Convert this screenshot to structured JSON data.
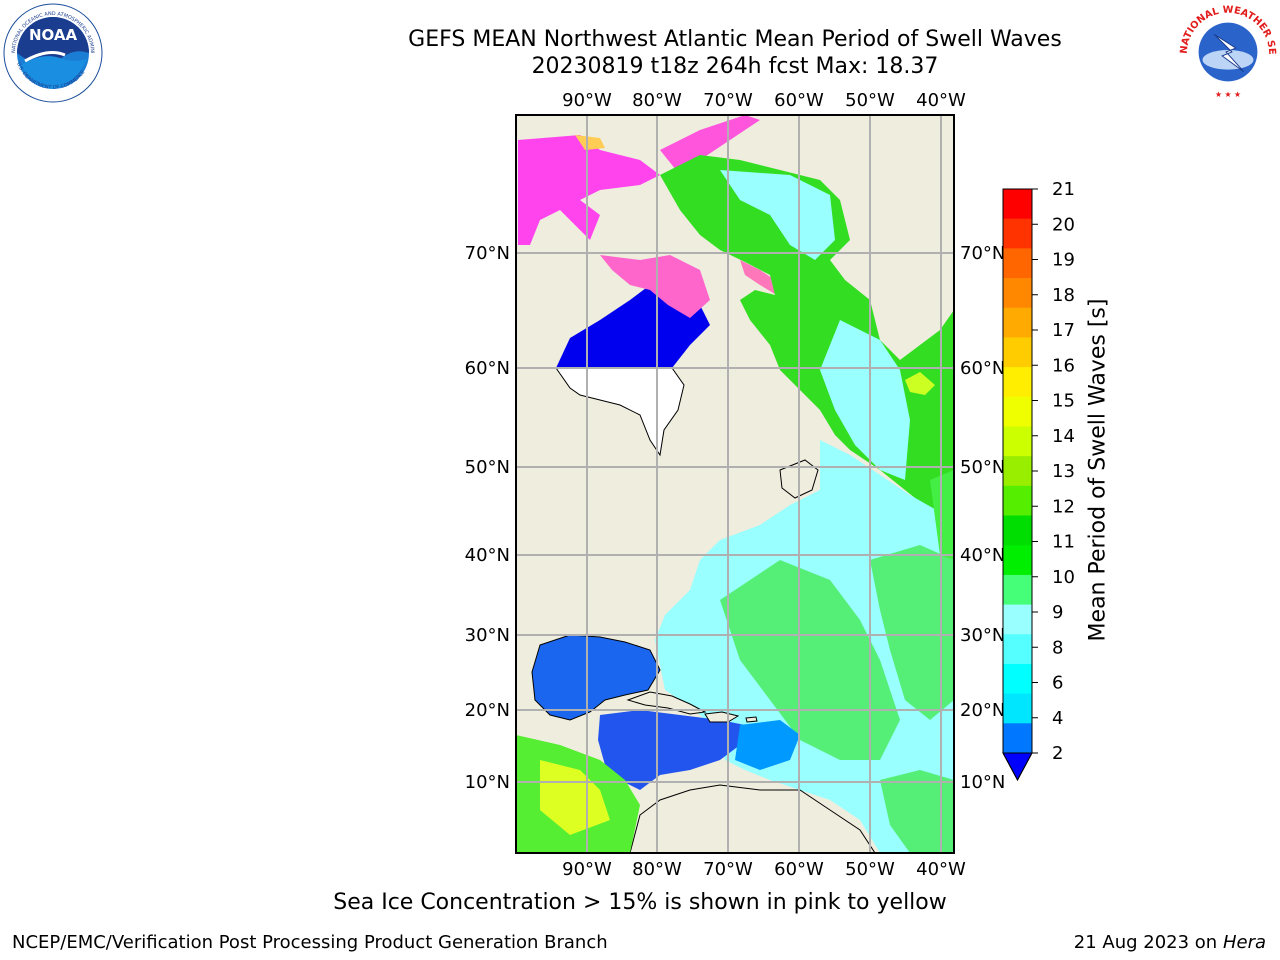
{
  "header": {
    "title_line1": "GEFS MEAN Northwest Atlantic Mean Period of Swell Waves",
    "title_line2": "20230819 t18z 264h fcst   Max: 18.37"
  },
  "logos": {
    "left": "noaa-logo",
    "right": "nws-logo"
  },
  "map": {
    "lon_ticks": [
      "90°W",
      "80°W",
      "70°W",
      "60°W",
      "50°W",
      "40°W"
    ],
    "lat_ticks": [
      "70°N",
      "60°N",
      "50°N",
      "40°N",
      "30°N",
      "20°N",
      "10°N"
    ],
    "land_color": "#efedde",
    "ocean_mean_color": "#99ffff",
    "ice_colors": [
      "#ff33ff",
      "#ff66cc",
      "#ff9999",
      "#ffcc66"
    ]
  },
  "colorbar": {
    "label": "Mean Period of Swell Waves [s]",
    "ticks": [
      "21",
      "20",
      "19",
      "18",
      "17",
      "16",
      "15",
      "14",
      "13",
      "12",
      "11",
      "10",
      "9",
      "8",
      "6",
      "4",
      "2"
    ],
    "colors": [
      "#ff0000",
      "#ff3300",
      "#ff6600",
      "#ff8800",
      "#ffaa00",
      "#ffcc00",
      "#ffee00",
      "#f0ff00",
      "#ccff00",
      "#99ee00",
      "#55ee00",
      "#00dd00",
      "#00ee00",
      "#44ff77",
      "#99ffff",
      "#55ffff",
      "#00ffff",
      "#00e6ff",
      "#0077ff"
    ],
    "under_color": "#0000ff"
  },
  "footer": {
    "note": "Sea Ice Concentration > 15% is shown in pink to yellow",
    "credit": "NCEP/EMC/Verification Post Processing Product Generation Branch",
    "date": "21 Aug 2023 on",
    "host": "Hera"
  }
}
